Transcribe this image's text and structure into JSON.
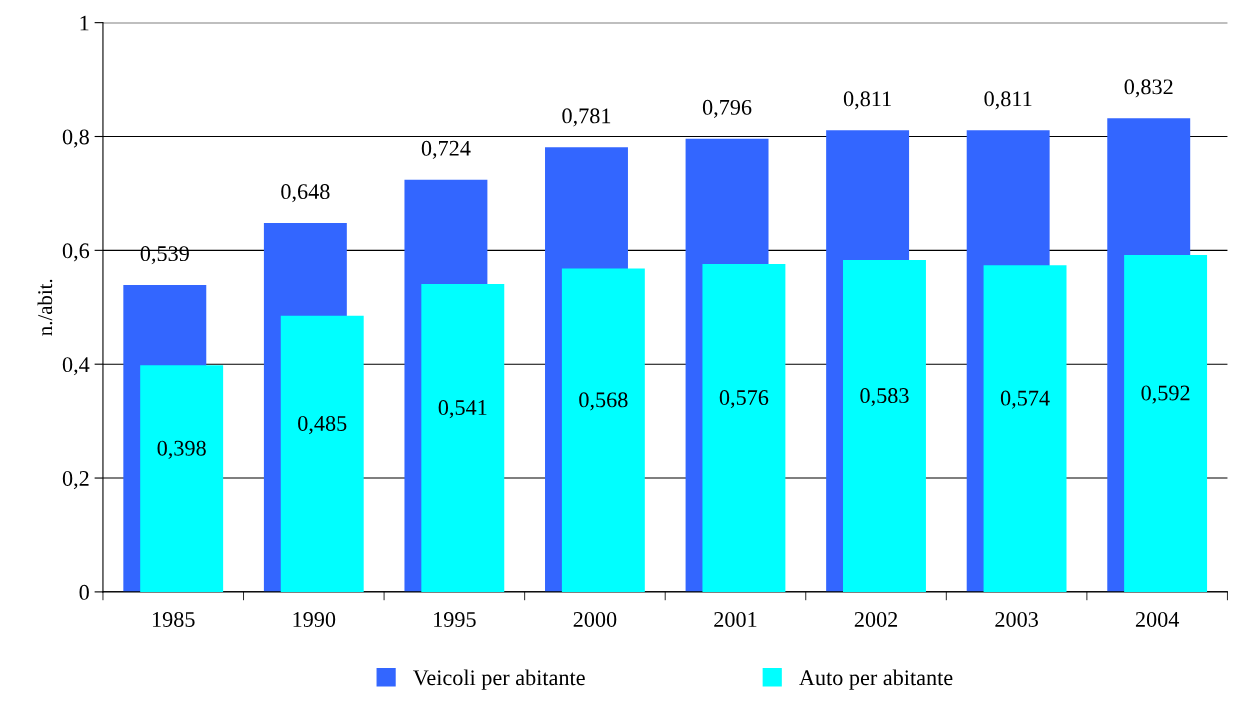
{
  "chart_data": {
    "type": "bar",
    "ylabel": "n./abit.",
    "categories": [
      "1985",
      "1990",
      "1995",
      "2000",
      "2001",
      "2002",
      "2003",
      "2004"
    ],
    "series": [
      {
        "name": "Veicoli per abitante",
        "color": "#3366ff",
        "values": [
          0.539,
          0.648,
          0.724,
          0.781,
          0.796,
          0.811,
          0.811,
          0.832
        ],
        "value_labels": [
          "0,539",
          "0,648",
          "0,724",
          "0,781",
          "0,796",
          "0,811",
          "0,811",
          "0,832"
        ]
      },
      {
        "name": "Auto per abitante",
        "color": "#00ffff",
        "values": [
          0.398,
          0.485,
          0.541,
          0.568,
          0.576,
          0.583,
          0.574,
          0.592
        ],
        "value_labels": [
          "0,398",
          "0,485",
          "0,541",
          "0,568",
          "0,576",
          "0,583",
          "0,574",
          "0,592"
        ]
      }
    ],
    "ylim": [
      0,
      1
    ],
    "yticks": [
      0,
      {
        "value": 0.2,
        "label": "0,2"
      },
      {
        "value": 0.4,
        "label": "0,4"
      },
      {
        "value": 0.6,
        "label": "0,6"
      },
      {
        "value": 0.8,
        "label": "0,8"
      },
      1
    ],
    "grid": "y",
    "legend": "bottom"
  }
}
